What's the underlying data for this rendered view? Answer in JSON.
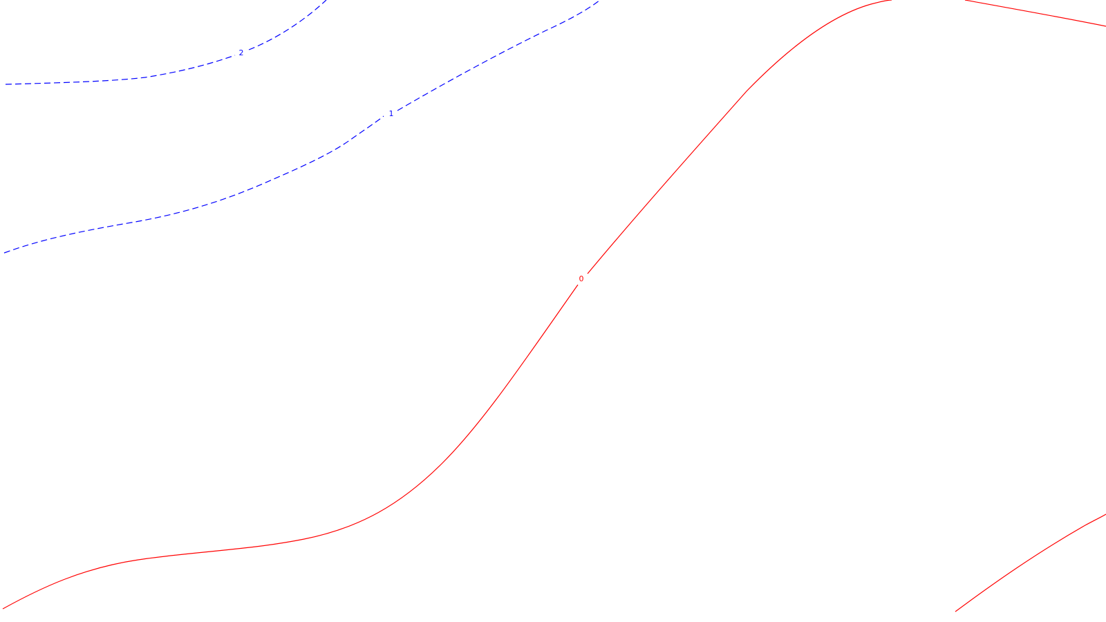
{
  "contours": [
    {
      "label": "2",
      "color": "#0000ff",
      "style": "dashed"
    },
    {
      "label": "1",
      "color": "#0000ff",
      "style": "dashed"
    },
    {
      "label": "0",
      "color": "#ff0000",
      "style": "solid"
    }
  ]
}
